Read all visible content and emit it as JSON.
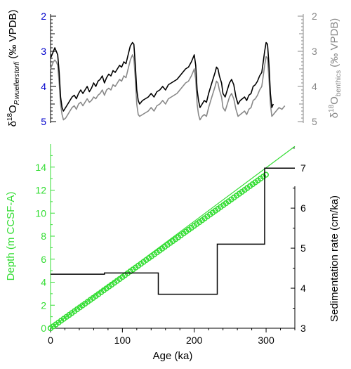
{
  "chart_data": [
    {
      "type": "line",
      "panel": "top",
      "xlim": [
        0,
        340
      ],
      "ylim": [
        5,
        2
      ],
      "y_inverted": true,
      "left_axis": {
        "label_parts": [
          "δ",
          "18",
          "O",
          "P.wuellerstorfi",
          " (‰ VPDB)"
        ],
        "ticks": [
          "2",
          "3",
          "4",
          "5"
        ],
        "tick_color": "#0000cc"
      },
      "right_axis": {
        "label_parts": [
          "δ",
          "18",
          "O",
          "benthics",
          " (‰ VPDB)"
        ],
        "ticks": [
          "2",
          "3",
          "4",
          "5"
        ],
        "color": "#888888"
      },
      "series": [
        {
          "color": "#000000",
          "points": [
            [
              0,
              3.2
            ],
            [
              2,
              3.1
            ],
            [
              4,
              3.0
            ],
            [
              6,
              2.9
            ],
            [
              8,
              3.0
            ],
            [
              10,
              3.1
            ],
            [
              12,
              3.6
            ],
            [
              14,
              4.3
            ],
            [
              16,
              4.6
            ],
            [
              18,
              4.7
            ],
            [
              21,
              4.6
            ],
            [
              24,
              4.5
            ],
            [
              27,
              4.4
            ],
            [
              30,
              4.3
            ],
            [
              33,
              4.25
            ],
            [
              36,
              4.35
            ],
            [
              39,
              4.2
            ],
            [
              42,
              4.1
            ],
            [
              45,
              4.2
            ],
            [
              48,
              4.1
            ],
            [
              51,
              4.0
            ],
            [
              54,
              4.15
            ],
            [
              57,
              4.05
            ],
            [
              60,
              3.9
            ],
            [
              63,
              4.0
            ],
            [
              66,
              3.85
            ],
            [
              69,
              3.8
            ],
            [
              72,
              3.7
            ],
            [
              75,
              3.9
            ],
            [
              78,
              3.75
            ],
            [
              81,
              3.65
            ],
            [
              84,
              3.7
            ],
            [
              87,
              3.55
            ],
            [
              90,
              3.6
            ],
            [
              93,
              3.5
            ],
            [
              96,
              3.4
            ],
            [
              99,
              3.45
            ],
            [
              102,
              3.3
            ],
            [
              105,
              3.35
            ],
            [
              108,
              3.1
            ],
            [
              111,
              2.85
            ],
            [
              114,
              2.75
            ],
            [
              116,
              2.8
            ],
            [
              118,
              3.4
            ],
            [
              120,
              4.1
            ],
            [
              122,
              4.4
            ],
            [
              124,
              4.5
            ],
            [
              128,
              4.4
            ],
            [
              132,
              4.35
            ],
            [
              136,
              4.3
            ],
            [
              140,
              4.2
            ],
            [
              144,
              4.3
            ],
            [
              148,
              4.15
            ],
            [
              152,
              4.1
            ],
            [
              156,
              4.0
            ],
            [
              160,
              4.1
            ],
            [
              164,
              3.95
            ],
            [
              168,
              3.9
            ],
            [
              172,
              3.85
            ],
            [
              176,
              3.8
            ],
            [
              180,
              3.7
            ],
            [
              184,
              3.6
            ],
            [
              188,
              3.5
            ],
            [
              192,
              3.45
            ],
            [
              196,
              3.3
            ],
            [
              198,
              3.2
            ],
            [
              200,
              3.1
            ],
            [
              202,
              3.4
            ],
            [
              204,
              4.1
            ],
            [
              206,
              4.4
            ],
            [
              208,
              4.6
            ],
            [
              211,
              4.5
            ],
            [
              214,
              4.4
            ],
            [
              217,
              4.45
            ],
            [
              220,
              4.2
            ],
            [
              223,
              4.0
            ],
            [
              226,
              3.8
            ],
            [
              229,
              3.6
            ],
            [
              231,
              3.45
            ],
            [
              233,
              3.5
            ],
            [
              235,
              3.7
            ],
            [
              238,
              3.9
            ],
            [
              240,
              4.2
            ],
            [
              243,
              4.3
            ],
            [
              246,
              4.1
            ],
            [
              249,
              3.9
            ],
            [
              252,
              3.8
            ],
            [
              255,
              3.95
            ],
            [
              258,
              4.3
            ],
            [
              261,
              4.5
            ],
            [
              264,
              4.4
            ],
            [
              267,
              4.35
            ],
            [
              270,
              4.3
            ],
            [
              273,
              4.4
            ],
            [
              276,
              4.25
            ],
            [
              279,
              4.2
            ],
            [
              282,
              4.0
            ],
            [
              285,
              3.95
            ],
            [
              288,
              3.85
            ],
            [
              291,
              3.7
            ],
            [
              294,
              3.6
            ],
            [
              296,
              3.3
            ],
            [
              298,
              3.0
            ],
            [
              300,
              2.75
            ],
            [
              302,
              2.8
            ],
            [
              304,
              3.4
            ],
            [
              306,
              4.2
            ],
            [
              308,
              4.6
            ],
            [
              310,
              4.5
            ]
          ]
        },
        {
          "color": "#888888",
          "points": [
            [
              0,
              3.5
            ],
            [
              2,
              3.4
            ],
            [
              4,
              3.3
            ],
            [
              6,
              3.25
            ],
            [
              8,
              3.3
            ],
            [
              10,
              3.4
            ],
            [
              12,
              3.9
            ],
            [
              14,
              4.5
            ],
            [
              16,
              4.8
            ],
            [
              18,
              4.95
            ],
            [
              21,
              4.9
            ],
            [
              24,
              4.8
            ],
            [
              27,
              4.7
            ],
            [
              30,
              4.6
            ],
            [
              33,
              4.55
            ],
            [
              36,
              4.65
            ],
            [
              39,
              4.5
            ],
            [
              42,
              4.45
            ],
            [
              45,
              4.55
            ],
            [
              48,
              4.45
            ],
            [
              51,
              4.35
            ],
            [
              54,
              4.45
            ],
            [
              57,
              4.4
            ],
            [
              60,
              4.3
            ],
            [
              63,
              4.35
            ],
            [
              66,
              4.25
            ],
            [
              69,
              4.2
            ],
            [
              72,
              4.1
            ],
            [
              75,
              4.25
            ],
            [
              78,
              4.1
            ],
            [
              81,
              4.05
            ],
            [
              84,
              4.1
            ],
            [
              87,
              3.95
            ],
            [
              90,
              4.0
            ],
            [
              93,
              3.9
            ],
            [
              96,
              3.8
            ],
            [
              99,
              3.85
            ],
            [
              102,
              3.7
            ],
            [
              105,
              3.75
            ],
            [
              108,
              3.5
            ],
            [
              111,
              3.25
            ],
            [
              114,
              3.1
            ],
            [
              116,
              3.2
            ],
            [
              118,
              3.8
            ],
            [
              120,
              4.5
            ],
            [
              122,
              4.8
            ],
            [
              124,
              4.85
            ],
            [
              128,
              4.8
            ],
            [
              132,
              4.75
            ],
            [
              136,
              4.7
            ],
            [
              140,
              4.6
            ],
            [
              144,
              4.7
            ],
            [
              148,
              4.55
            ],
            [
              152,
              4.5
            ],
            [
              156,
              4.4
            ],
            [
              160,
              4.5
            ],
            [
              164,
              4.35
            ],
            [
              168,
              4.3
            ],
            [
              172,
              4.25
            ],
            [
              176,
              4.2
            ],
            [
              180,
              4.1
            ],
            [
              184,
              4.0
            ],
            [
              188,
              3.9
            ],
            [
              192,
              3.85
            ],
            [
              196,
              3.7
            ],
            [
              198,
              3.6
            ],
            [
              200,
              3.5
            ],
            [
              202,
              3.8
            ],
            [
              204,
              4.5
            ],
            [
              206,
              4.8
            ],
            [
              208,
              4.95
            ],
            [
              211,
              4.85
            ],
            [
              214,
              4.8
            ],
            [
              217,
              4.85
            ],
            [
              220,
              4.6
            ],
            [
              223,
              4.4
            ],
            [
              226,
              4.2
            ],
            [
              229,
              4.0
            ],
            [
              231,
              3.85
            ],
            [
              233,
              3.9
            ],
            [
              235,
              4.1
            ],
            [
              238,
              4.3
            ],
            [
              240,
              4.6
            ],
            [
              243,
              4.7
            ],
            [
              246,
              4.5
            ],
            [
              249,
              4.3
            ],
            [
              252,
              4.2
            ],
            [
              255,
              4.35
            ],
            [
              258,
              4.65
            ],
            [
              261,
              4.85
            ],
            [
              264,
              4.8
            ],
            [
              267,
              4.75
            ],
            [
              270,
              4.7
            ],
            [
              273,
              4.8
            ],
            [
              276,
              4.65
            ],
            [
              279,
              4.6
            ],
            [
              282,
              4.4
            ],
            [
              285,
              4.35
            ],
            [
              288,
              4.25
            ],
            [
              291,
              4.1
            ],
            [
              294,
              4.0
            ],
            [
              296,
              3.7
            ],
            [
              298,
              3.4
            ],
            [
              300,
              3.15
            ],
            [
              302,
              3.2
            ],
            [
              304,
              3.8
            ],
            [
              306,
              4.5
            ],
            [
              308,
              4.85
            ],
            [
              310,
              4.8
            ],
            [
              314,
              4.7
            ],
            [
              318,
              4.6
            ],
            [
              322,
              4.65
            ],
            [
              326,
              4.55
            ]
          ]
        }
      ]
    },
    {
      "type": "scatter",
      "panel": "bottom",
      "xlim": [
        0,
        340
      ],
      "x_ticks": [
        "0",
        "100",
        "200",
        "300"
      ],
      "xlabel": "Age (ka)",
      "left_axis": {
        "label": "Depth (m CCSF-A)",
        "ylim": [
          0,
          16
        ],
        "ticks": [
          "0",
          "2",
          "4",
          "6",
          "8",
          "10",
          "12",
          "14"
        ],
        "color": "#33dd33"
      },
      "right_axis": {
        "label": "Sedimentation rate (cm/ka)",
        "ylim": [
          3,
          7.6
        ],
        "ticks": [
          "3",
          "4",
          "5",
          "6",
          "7"
        ]
      },
      "depth_fit": {
        "x": [
          0,
          340
        ],
        "y": [
          0,
          15.8
        ],
        "color": "#33dd33"
      },
      "depth_points": {
        "x_start": 0,
        "x_end": 300,
        "x_step": 3.7,
        "slope": 0.0445,
        "color": "#33dd33"
      },
      "sedimentation_rate": {
        "color": "#000000",
        "points": [
          [
            0,
            4.35
          ],
          [
            75,
            4.35
          ],
          [
            75,
            4.38
          ],
          [
            150,
            4.38
          ],
          [
            150,
            3.85
          ],
          [
            232,
            3.85
          ],
          [
            232,
            5.1
          ],
          [
            298,
            5.1
          ],
          [
            298,
            7.0
          ],
          [
            340,
            7.0
          ]
        ]
      }
    }
  ]
}
